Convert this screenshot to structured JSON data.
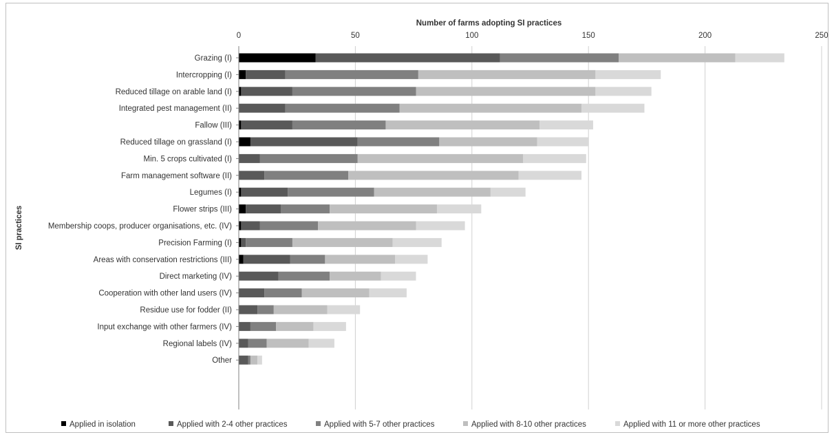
{
  "chart_data": {
    "type": "bar",
    "orientation": "horizontal",
    "stacked": true,
    "title": "Number of farms adopting SI practices",
    "xlabel": "Number of farms adopting SI practices",
    "ylabel": "SI practices",
    "xlim": [
      0,
      250
    ],
    "xticks": [
      0,
      50,
      100,
      150,
      200,
      250
    ],
    "grid": true,
    "legend_position": "bottom",
    "categories": [
      "Grazing (I)",
      "Intercropping (I)",
      "Reduced tillage on arable land (I)",
      "Integrated pest management (II)",
      "Fallow (III)",
      "Reduced tillage on grassland (I)",
      "Min. 5 crops cultivated (I)",
      "Farm management software (II)",
      "Legumes (I)",
      "Flower strips (III)",
      "Membership coops, producer organisations, etc. (IV)",
      "Precision Farming (I)",
      "Areas with conservation restrictions (III)",
      "Direct marketing (IV)",
      "Cooperation with other land users (IV)",
      "Residue use for fodder (II)",
      "Input exchange with other farmers (IV)",
      "Regional labels (IV)",
      "Other"
    ],
    "series": [
      {
        "name": "Applied in isolation",
        "color": "#000000",
        "values": [
          33,
          3,
          1,
          0,
          1,
          5,
          0,
          0,
          1,
          3,
          1,
          1,
          2,
          0,
          0,
          0,
          0,
          0,
          0
        ]
      },
      {
        "name": "Applied with 2-4 other practices",
        "color": "#595959",
        "values": [
          79,
          17,
          22,
          20,
          22,
          46,
          9,
          11,
          20,
          15,
          8,
          2,
          20,
          17,
          11,
          8,
          5,
          4,
          4
        ]
      },
      {
        "name": "Applied with 5-7 other practices",
        "color": "#808080",
        "values": [
          51,
          57,
          53,
          49,
          40,
          35,
          42,
          36,
          37,
          21,
          25,
          20,
          15,
          22,
          16,
          7,
          11,
          8,
          1
        ]
      },
      {
        "name": "Applied with 8-10 other practices",
        "color": "#bfbfbf",
        "values": [
          50,
          76,
          77,
          78,
          66,
          42,
          71,
          73,
          50,
          46,
          42,
          43,
          30,
          22,
          29,
          23,
          16,
          18,
          3
        ]
      },
      {
        "name": "Applied with 11 or more other practices",
        "color": "#d9d9d9",
        "values": [
          21,
          28,
          24,
          27,
          23,
          22,
          27,
          27,
          15,
          19,
          21,
          21,
          14,
          15,
          16,
          14,
          14,
          11,
          2
        ]
      }
    ]
  }
}
